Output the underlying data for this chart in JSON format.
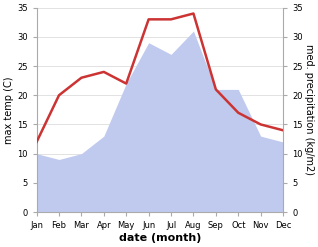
{
  "months": [
    "Jan",
    "Feb",
    "Mar",
    "Apr",
    "May",
    "Jun",
    "Jul",
    "Aug",
    "Sep",
    "Oct",
    "Nov",
    "Dec"
  ],
  "temperature": [
    12,
    20,
    23,
    24,
    22,
    33,
    33,
    34,
    21,
    17,
    15,
    14
  ],
  "precipitation": [
    10,
    9,
    10,
    13,
    22,
    29,
    27,
    31,
    21,
    21,
    13,
    12
  ],
  "temp_color": "#cc3333",
  "precip_color": "#c0caee",
  "background_color": "#ffffff",
  "ylim": [
    0,
    35
  ],
  "ylabel_left": "max temp (C)",
  "ylabel_right": "med. precipitation (kg/m2)",
  "xlabel": "date (month)",
  "tick_interval": 5,
  "line_width": 1.8,
  "spine_color": "#aaaaaa",
  "grid_color": "#dddddd",
  "tick_label_size": 6.0,
  "axis_label_size": 7.0,
  "xlabel_size": 8.0
}
